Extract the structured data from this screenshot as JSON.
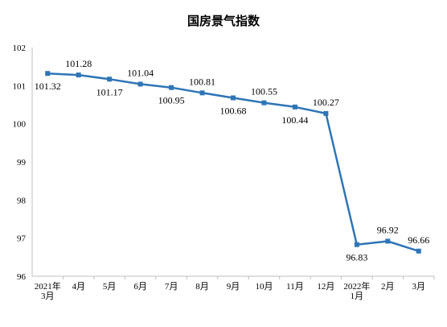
{
  "chart_data": {
    "type": "line",
    "title": "国房景气指数",
    "xlabel": "",
    "ylabel": "",
    "ylim": [
      96,
      102
    ],
    "yticks": [
      "96",
      "97",
      "98",
      "99",
      "100",
      "101",
      "102"
    ],
    "categories": [
      [
        "2021年",
        "3月"
      ],
      [
        "4月"
      ],
      [
        "5月"
      ],
      [
        "6月"
      ],
      [
        "7月"
      ],
      [
        "8月"
      ],
      [
        "9月"
      ],
      [
        "10月"
      ],
      [
        "11月"
      ],
      [
        "12月"
      ],
      [
        "2022年",
        "1月"
      ],
      [
        "2月"
      ],
      [
        "3月"
      ]
    ],
    "values": [
      101.32,
      101.28,
      101.17,
      101.04,
      100.95,
      100.81,
      100.68,
      100.55,
      100.44,
      100.27,
      96.83,
      96.92,
      96.66
    ],
    "labels": [
      "101.32",
      "101.28",
      "101.17",
      "101.04",
      "100.95",
      "100.81",
      "100.68",
      "100.55",
      "100.44",
      "100.27",
      "96.83",
      "96.92",
      "96.66"
    ],
    "label_positions": [
      "below",
      "above",
      "below",
      "above",
      "below",
      "above",
      "below",
      "above",
      "below",
      "above",
      "below",
      "above",
      "above"
    ],
    "line_color": "#2e75b6",
    "axis_color": "#bfbfbf",
    "grid": false,
    "legend": "none"
  }
}
